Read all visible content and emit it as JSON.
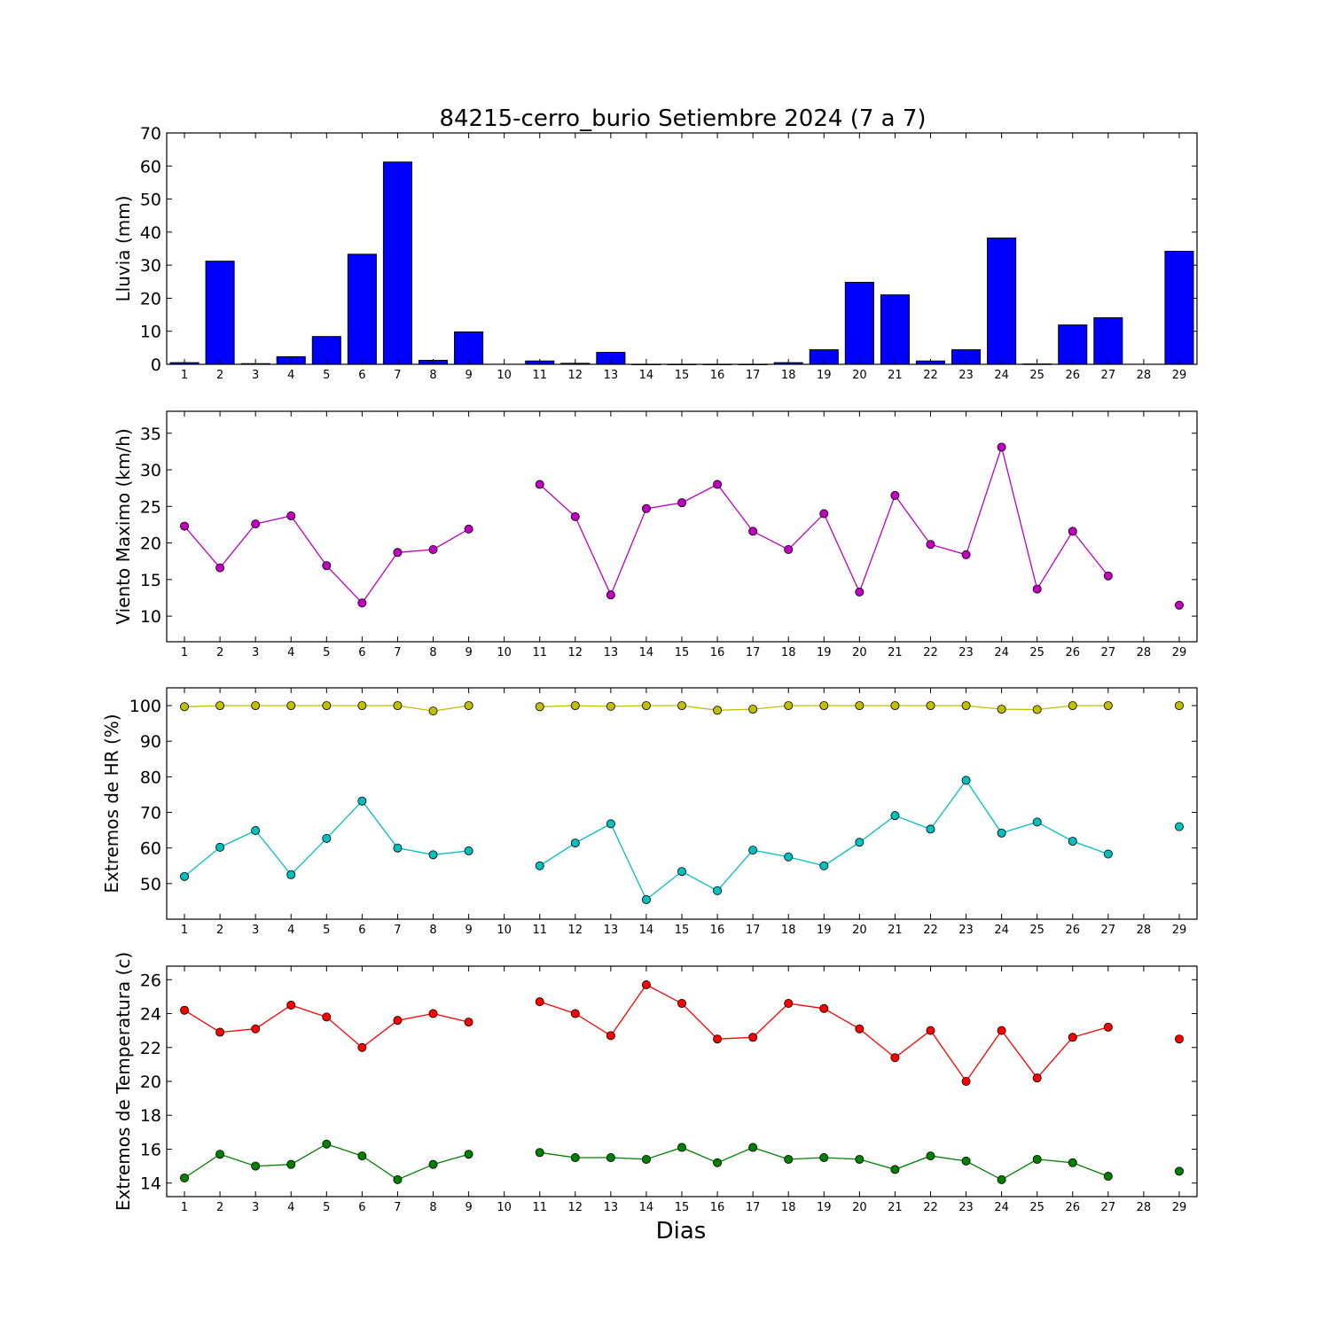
{
  "title": "84215-cerro_burio Setiembre 2024  (7 a 7)",
  "xlabel": "Dias",
  "chart_data": [
    {
      "type": "bar",
      "ylabel": "Lluvia (mm)",
      "ylim": [
        0,
        70
      ],
      "yticks": [
        0,
        10,
        20,
        30,
        40,
        50,
        60,
        70
      ],
      "x_ticks": [
        "1",
        "2",
        "3",
        "4",
        "5",
        "6",
        "7",
        "8",
        "9",
        "10",
        "11",
        "12",
        "13",
        "14",
        "15",
        "16",
        "17",
        "18",
        "19",
        "20",
        "21",
        "22",
        "23",
        "24",
        "25",
        "26",
        "27",
        "28",
        "29"
      ],
      "series": [
        {
          "color": "#0000ff",
          "values": [
            0.5,
            31.2,
            0.2,
            2.3,
            8.4,
            33.3,
            61.2,
            1.2,
            9.8,
            null,
            1.0,
            0.3,
            3.6,
            0.0,
            0.0,
            0.0,
            0.0,
            0.5,
            4.4,
            24.8,
            21.0,
            1.0,
            4.4,
            38.2,
            0.1,
            11.9,
            14.1,
            null,
            34.2
          ]
        }
      ]
    },
    {
      "type": "line",
      "ylabel": "Viento Maximo (km/h)",
      "ylim": [
        6.5,
        38
      ],
      "yticks": [
        10,
        15,
        20,
        25,
        30,
        35
      ],
      "x_ticks": [
        "1",
        "2",
        "3",
        "4",
        "5",
        "6",
        "7",
        "8",
        "9",
        "10",
        "11",
        "12",
        "13",
        "14",
        "15",
        "16",
        "17",
        "18",
        "19",
        "20",
        "21",
        "22",
        "23",
        "24",
        "25",
        "26",
        "27",
        "28",
        "29"
      ],
      "series": [
        {
          "color": "#bf00bf",
          "values": [
            22.3,
            16.6,
            22.6,
            23.7,
            16.9,
            11.8,
            18.7,
            19.1,
            21.9,
            null,
            28.0,
            23.6,
            12.9,
            24.7,
            25.5,
            28.0,
            21.6,
            19.1,
            24.0,
            13.3,
            26.5,
            19.8,
            18.4,
            33.1,
            13.7,
            21.6,
            15.5,
            null,
            11.5
          ]
        }
      ]
    },
    {
      "type": "line",
      "ylabel": "Extremos de HR (%)",
      "ylim": [
        40,
        105
      ],
      "yticks": [
        50,
        60,
        70,
        80,
        90,
        100
      ],
      "x_ticks": [
        "1",
        "2",
        "3",
        "4",
        "5",
        "6",
        "7",
        "8",
        "9",
        "10",
        "11",
        "12",
        "13",
        "14",
        "15",
        "16",
        "17",
        "18",
        "19",
        "20",
        "21",
        "22",
        "23",
        "24",
        "25",
        "26",
        "27",
        "28",
        "29"
      ],
      "series": [
        {
          "color": "#bfbf00",
          "values": [
            99.7,
            100,
            100,
            100,
            100,
            100,
            100,
            98.5,
            100,
            null,
            99.7,
            100,
            99.8,
            100,
            100,
            98.7,
            99.0,
            100,
            100,
            100,
            100,
            100,
            100,
            99.0,
            98.9,
            100,
            100,
            null,
            100
          ]
        },
        {
          "color": "#00bfbf",
          "values": [
            52.0,
            60.2,
            64.9,
            52.5,
            62.7,
            73.2,
            60.0,
            58.1,
            59.2,
            null,
            55.0,
            61.4,
            66.8,
            45.5,
            53.4,
            48.0,
            59.4,
            57.5,
            55.0,
            61.6,
            69.1,
            65.3,
            79.0,
            64.2,
            67.3,
            61.9,
            58.3,
            null,
            66.0
          ]
        }
      ]
    },
    {
      "type": "line",
      "ylabel": "Extremos de Temperatura (c)",
      "ylim": [
        13.2,
        26.8
      ],
      "yticks": [
        14,
        16,
        18,
        20,
        22,
        24,
        26
      ],
      "x_ticks": [
        "1",
        "2",
        "3",
        "4",
        "5",
        "6",
        "7",
        "8",
        "9",
        "10",
        "11",
        "12",
        "13",
        "14",
        "15",
        "16",
        "17",
        "18",
        "19",
        "20",
        "21",
        "22",
        "23",
        "24",
        "25",
        "26",
        "27",
        "28",
        "29"
      ],
      "series": [
        {
          "color": "#ff0000",
          "values": [
            24.2,
            22.9,
            23.1,
            24.5,
            23.8,
            22.0,
            23.6,
            24.0,
            23.5,
            null,
            24.7,
            24.0,
            22.7,
            25.7,
            24.6,
            22.5,
            22.6,
            24.6,
            24.3,
            23.1,
            21.4,
            23.0,
            20.0,
            23.0,
            20.2,
            22.6,
            23.2,
            null,
            22.5
          ]
        },
        {
          "color": "#008000",
          "values": [
            14.3,
            15.7,
            15.0,
            15.1,
            16.3,
            15.6,
            14.2,
            15.1,
            15.7,
            null,
            15.8,
            15.5,
            15.5,
            15.4,
            16.1,
            15.2,
            16.1,
            15.4,
            15.5,
            15.4,
            14.8,
            15.6,
            15.3,
            14.2,
            15.4,
            15.2,
            14.4,
            null,
            14.7
          ]
        }
      ]
    }
  ]
}
